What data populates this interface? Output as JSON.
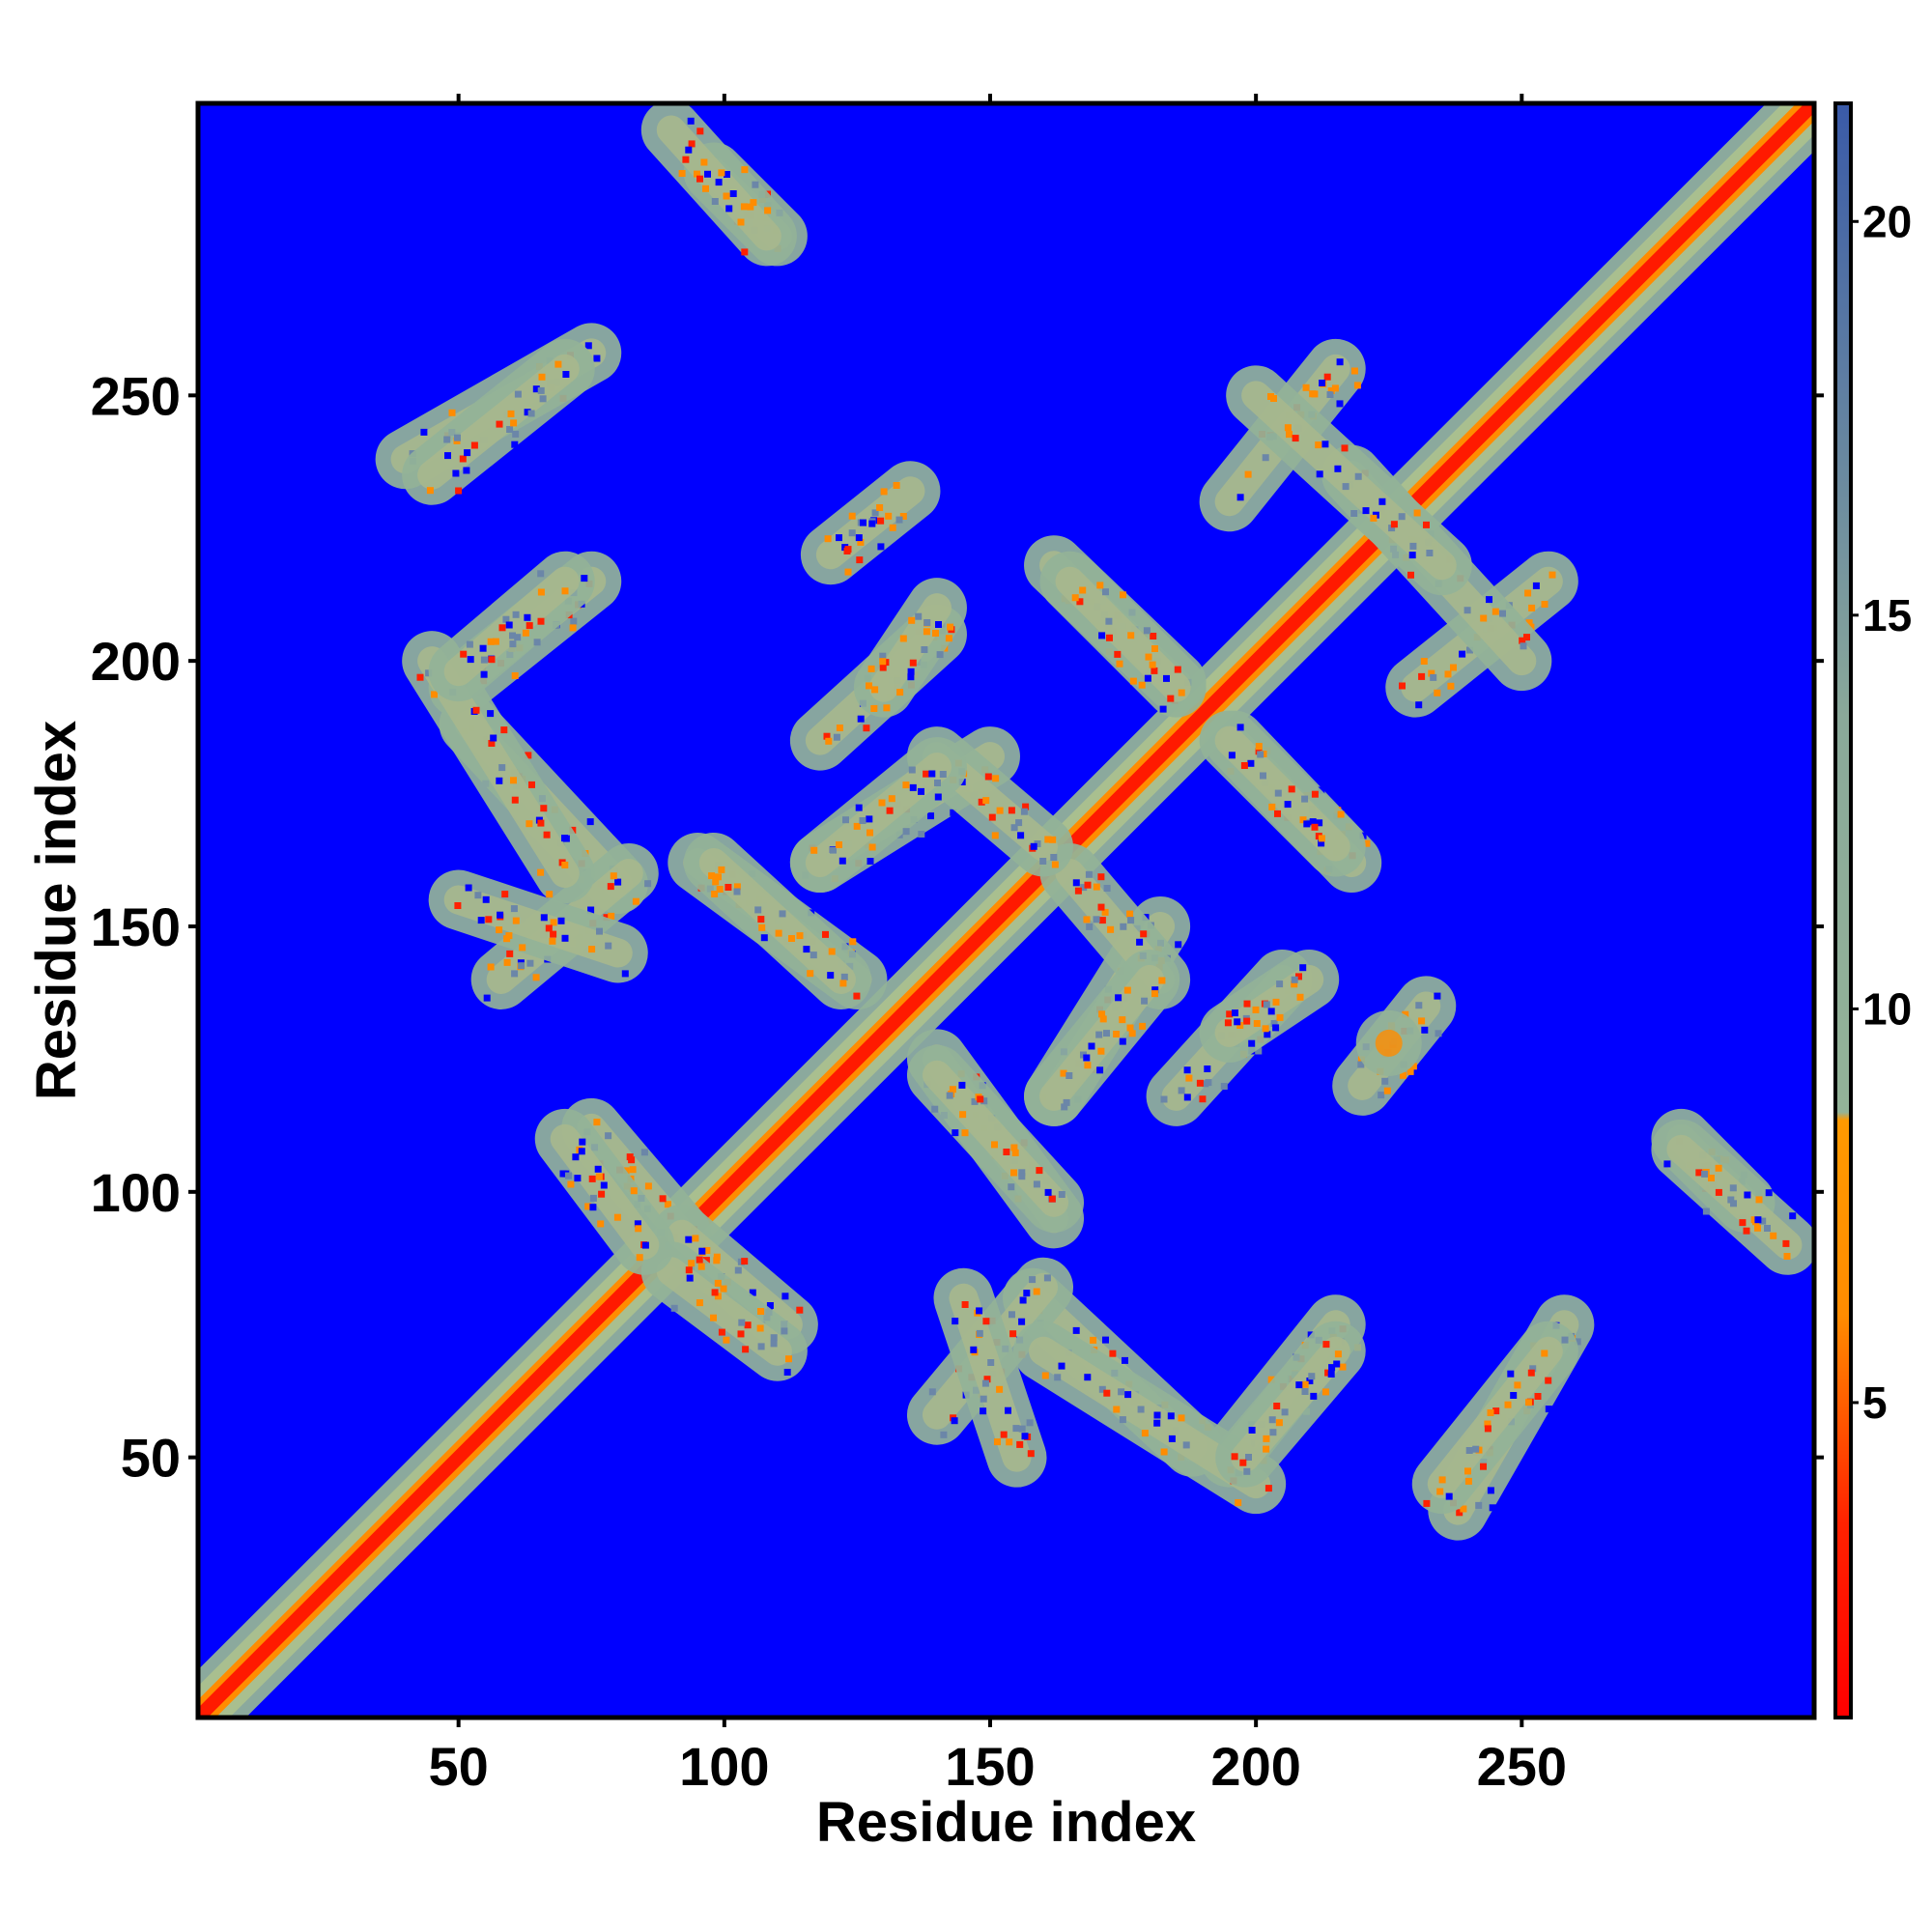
{
  "chart_data": {
    "type": "heatmap",
    "title": "",
    "xlabel": "Residue index",
    "ylabel": "Residue index",
    "xlim": [
      1,
      305
    ],
    "ylim": [
      1,
      305
    ],
    "xticks": [
      50,
      100,
      150,
      200,
      250
    ],
    "yticks": [
      50,
      100,
      150,
      200,
      250
    ],
    "colorbar": {
      "range": [
        1,
        21.5
      ],
      "ticks": [
        5,
        10,
        15,
        20
      ],
      "colors": [
        "#ff0000",
        "#ff8c00",
        "#93b398",
        "#6b86a8",
        "#0000ff"
      ]
    },
    "background_color": "#0000ff",
    "features": [
      {
        "type": "diagonal",
        "from": [
          1,
          1
        ],
        "to": [
          305,
          305
        ]
      },
      {
        "type": "antiparallel",
        "from": [
          98,
          292
        ],
        "to": [
          110,
          280
        ]
      },
      {
        "type": "parallel",
        "from": [
          40,
          238
        ],
        "to": [
          75,
          258
        ]
      },
      {
        "type": "parallel",
        "from": [
          50,
          195
        ],
        "to": [
          75,
          215
        ]
      },
      {
        "type": "antiparallel",
        "from": [
          52,
          188
        ],
        "to": [
          80,
          158
        ]
      },
      {
        "type": "parallel",
        "from": [
          58,
          140
        ],
        "to": [
          82,
          160
        ]
      },
      {
        "type": "antiparallel",
        "from": [
          75,
          112
        ],
        "to": [
          92,
          92
        ]
      },
      {
        "type": "antiparallel",
        "from": [
          90,
          85
        ],
        "to": [
          110,
          70
        ]
      },
      {
        "type": "parallel",
        "from": [
          120,
          220
        ],
        "to": [
          135,
          232
        ]
      },
      {
        "type": "parallel",
        "from": [
          118,
          185
        ],
        "to": [
          140,
          205
        ]
      },
      {
        "type": "antiparallel",
        "from": [
          95,
          162
        ],
        "to": [
          125,
          140
        ]
      },
      {
        "type": "parallel",
        "from": [
          118,
          162
        ],
        "to": [
          150,
          182
        ]
      },
      {
        "type": "antiparallel",
        "from": [
          140,
          122
        ],
        "to": [
          162,
          98
        ]
      },
      {
        "type": "antiparallel",
        "from": [
          145,
          80
        ],
        "to": [
          155,
          50
        ]
      },
      {
        "type": "antiparallel",
        "from": [
          160,
          70
        ],
        "to": [
          200,
          45
        ]
      },
      {
        "type": "antiparallel",
        "from": [
          162,
          218
        ],
        "to": [
          185,
          196
        ]
      },
      {
        "type": "antiparallel",
        "from": [
          165,
          160
        ],
        "to": [
          182,
          140
        ]
      },
      {
        "type": "parallel",
        "from": [
          162,
          118
        ],
        "to": [
          180,
          140
        ]
      },
      {
        "type": "parallel",
        "from": [
          198,
          50
        ],
        "to": [
          215,
          70
        ]
      },
      {
        "type": "parallel",
        "from": [
          195,
          130
        ],
        "to": [
          210,
          140
        ]
      },
      {
        "type": "antiparallel",
        "from": [
          195,
          185
        ],
        "to": [
          215,
          165
        ]
      },
      {
        "type": "parallel",
        "from": [
          195,
          230
        ],
        "to": [
          215,
          255
        ]
      },
      {
        "type": "antiparallel",
        "from": [
          218,
          235
        ],
        "to": [
          250,
          200
        ]
      },
      {
        "type": "spot",
        "from": [
          225,
          128
        ],
        "to": [
          225,
          128
        ]
      },
      {
        "type": "parallel",
        "from": [
          235,
          45
        ],
        "to": [
          255,
          70
        ]
      },
      {
        "type": "antiparallel",
        "from": [
          280,
          108
        ],
        "to": [
          300,
          90
        ]
      }
    ]
  }
}
